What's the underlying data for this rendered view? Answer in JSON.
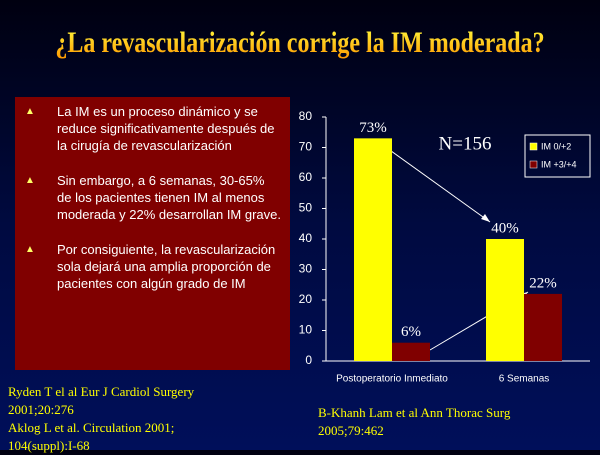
{
  "header": {
    "title": "¿La revascularización corrige la IM moderada?"
  },
  "bullets": [
    "La IM es un proceso dinámico y se reduce significativamente después de la cirugía de revascularización",
    "Sin embargo, a 6 semanas, 30-65% de los pacientes tienen IM al menos moderada y 22% desarrollan IM grave.",
    "Por consiguiente, la revascularización sola dejará una amplia proporción de pacientes con algún grado de IM"
  ],
  "references_left": [
    "Ryden T el al Eur J Cardiol Surgery",
    "2001;20:276",
    "Aklog L et al. Circulation 2001;",
    "104(suppl):I-68"
  ],
  "references_right": [
    "B-Khanh Lam et al Ann Thorac Surg",
    "2005;79:462"
  ],
  "chart_data": {
    "type": "bar",
    "categories": [
      "Postoperatorio Inmediato",
      "6 Semanas"
    ],
    "series": [
      {
        "name": "IM 0/+2",
        "color": "#ffff00",
        "values": [
          73,
          40
        ],
        "value_labels": [
          "73%",
          "40%"
        ]
      },
      {
        "name": "IM +3/+4",
        "color": "#800000",
        "values": [
          6,
          22
        ],
        "value_labels": [
          "6%",
          "22%"
        ]
      }
    ],
    "annotation": "N=156",
    "ylim": [
      0,
      80
    ],
    "yticks": [
      0,
      10,
      20,
      30,
      40,
      50,
      60,
      70,
      80
    ],
    "legend": "top-right"
  }
}
